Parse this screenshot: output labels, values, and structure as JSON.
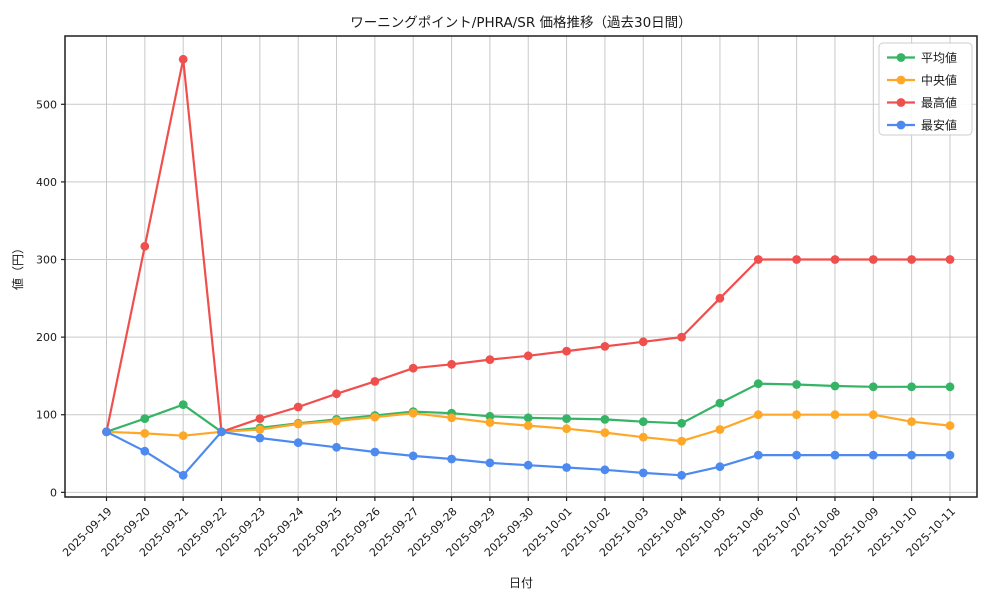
{
  "chart_data": {
    "type": "line",
    "title": "ワーニングポイント/PHRA/SR 価格推移（過去30日間）",
    "xlabel": "日付",
    "ylabel": "値（円）",
    "grid": true,
    "legend_position": "upper right",
    "ylim": [
      -6,
      588
    ],
    "yticks": [
      0,
      100,
      200,
      300,
      400,
      500
    ],
    "categories": [
      "2025-09-19",
      "2025-09-20",
      "2025-09-21",
      "2025-09-22",
      "2025-09-23",
      "2025-09-24",
      "2025-09-25",
      "2025-09-26",
      "2025-09-27",
      "2025-09-28",
      "2025-09-29",
      "2025-09-30",
      "2025-10-01",
      "2025-10-02",
      "2025-10-03",
      "2025-10-04",
      "2025-10-05",
      "2025-10-06",
      "2025-10-07",
      "2025-10-08",
      "2025-10-09",
      "2025-10-10",
      "2025-10-11"
    ],
    "series": [
      {
        "name": "平均値",
        "color": "#34b464",
        "values": [
          78,
          95,
          113,
          78,
          83,
          89,
          94,
          99,
          104,
          102,
          98,
          96,
          95,
          94,
          91,
          89,
          115,
          140,
          139,
          137,
          136,
          136,
          136
        ]
      },
      {
        "name": "中央値",
        "color": "#ffa726",
        "values": [
          78,
          76,
          73,
          78,
          81,
          88,
          92,
          97,
          102,
          96,
          90,
          86,
          82,
          77,
          71,
          66,
          81,
          100,
          100,
          100,
          100,
          91,
          86
        ]
      },
      {
        "name": "最高値",
        "color": "#f0504d",
        "values": [
          78,
          317,
          558,
          78,
          95,
          110,
          127,
          143,
          160,
          165,
          171,
          176,
          182,
          188,
          194,
          200,
          250,
          300,
          300,
          300,
          300,
          300,
          300
        ]
      },
      {
        "name": "最安値",
        "color": "#4d8af0",
        "values": [
          78,
          53,
          22,
          78,
          70,
          64,
          58,
          52,
          47,
          43,
          38,
          35,
          32,
          29,
          25,
          22,
          33,
          48,
          48,
          48,
          48,
          48,
          48
        ]
      }
    ],
    "colors": {
      "grid": "#c9c9c9",
      "spine": "#1f1f1f",
      "tick_text": "#1a1a1a",
      "legend_border": "#cccccc"
    }
  }
}
